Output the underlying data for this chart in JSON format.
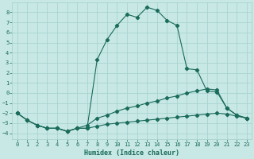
{
  "xlabel": "Humidex (Indice chaleur)",
  "bg_color": "#c8e8e5",
  "grid_color": "#a8d4d0",
  "line_color": "#1a6b5a",
  "xlim": [
    -0.5,
    23.5
  ],
  "ylim": [
    -4.6,
    9.0
  ],
  "yticks": [
    -4,
    -3,
    -2,
    -1,
    0,
    1,
    2,
    3,
    4,
    5,
    6,
    7,
    8
  ],
  "xticks": [
    0,
    1,
    2,
    3,
    4,
    5,
    6,
    7,
    8,
    9,
    10,
    11,
    12,
    13,
    14,
    15,
    16,
    17,
    18,
    19,
    20,
    21,
    22,
    23
  ],
  "line1_x": [
    0,
    1,
    2,
    3,
    4,
    5,
    6,
    7,
    8,
    9,
    10,
    11,
    12,
    13,
    14,
    15,
    16,
    17,
    18,
    19,
    20,
    21,
    22,
    23
  ],
  "line1_y": [
    -2.0,
    -2.7,
    -3.2,
    -3.5,
    -3.5,
    -3.8,
    -3.5,
    -3.5,
    3.3,
    5.3,
    6.7,
    7.8,
    7.5,
    8.5,
    8.2,
    7.2,
    6.7,
    2.4,
    2.3,
    0.2,
    0.1,
    -1.5,
    -2.2,
    -2.5
  ],
  "line2_x": [
    0,
    1,
    2,
    3,
    4,
    5,
    6,
    7,
    8,
    9,
    10,
    11,
    12,
    13,
    14,
    15,
    16,
    17,
    18,
    19,
    20,
    21,
    22,
    23
  ],
  "line2_y": [
    -2.0,
    -2.7,
    -3.2,
    -3.5,
    -3.5,
    -3.8,
    -3.5,
    -3.2,
    -2.5,
    -2.2,
    -1.8,
    -1.5,
    -1.3,
    -1.0,
    -0.8,
    -0.5,
    -0.3,
    0.0,
    0.2,
    0.4,
    0.3,
    -1.5,
    -2.2,
    -2.5
  ],
  "line3_x": [
    0,
    1,
    2,
    3,
    4,
    5,
    6,
    7,
    8,
    9,
    10,
    11,
    12,
    13,
    14,
    15,
    16,
    17,
    18,
    19,
    20,
    21,
    22,
    23
  ],
  "line3_y": [
    -2.0,
    -2.7,
    -3.2,
    -3.5,
    -3.5,
    -3.8,
    -3.5,
    -3.5,
    -3.3,
    -3.1,
    -3.0,
    -2.9,
    -2.8,
    -2.7,
    -2.6,
    -2.5,
    -2.4,
    -2.3,
    -2.2,
    -2.1,
    -2.0,
    -2.1,
    -2.3,
    -2.5
  ]
}
